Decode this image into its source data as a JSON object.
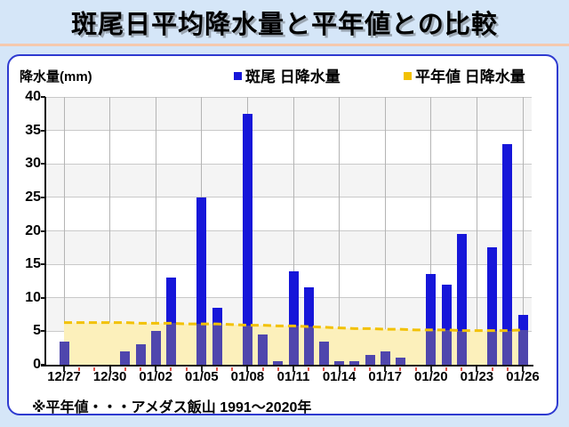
{
  "title": "斑尾日平均降水量と平年値との比較",
  "panel": {
    "y_axis_title": "降水量(mm)",
    "legend": [
      {
        "label": "斑尾 日降水量",
        "swatch": "blue-square-icon",
        "color": "#1616d9"
      },
      {
        "label": "平年値 日降水量",
        "swatch": "yellow-square-icon",
        "color": "#f2c104"
      }
    ],
    "footnote": "※平年値・・・アメダス飯山 1991〜2020年"
  },
  "chart_data": {
    "type": "bar",
    "title": "斑尾日平均降水量と平年値との比較",
    "xlabel": "",
    "ylabel": "降水量(mm)",
    "ylim": [
      0,
      40
    ],
    "ytick_step": 5,
    "grid": true,
    "legend_position": "top",
    "categories": [
      "12/27",
      "12/28",
      "12/29",
      "12/30",
      "12/31",
      "01/01",
      "01/02",
      "01/03",
      "01/04",
      "01/05",
      "01/06",
      "01/07",
      "01/08",
      "01/09",
      "01/10",
      "01/11",
      "01/12",
      "01/13",
      "01/14",
      "01/15",
      "01/16",
      "01/17",
      "01/18",
      "01/19",
      "01/20",
      "01/21",
      "01/22",
      "01/23",
      "01/24",
      "01/25",
      "01/26"
    ],
    "x_tick_labels": [
      "12/27",
      "12/30",
      "01/02",
      "01/05",
      "01/08",
      "01/11",
      "01/14",
      "01/17",
      "01/20",
      "01/23",
      "01/26"
    ],
    "series": [
      {
        "name": "斑尾 日降水量",
        "type": "bar",
        "color": "#1616d9",
        "overlap_color": "#4f46ad",
        "values": [
          3.5,
          0,
          0,
          0,
          2,
          3,
          5,
          13,
          0,
          25,
          8.5,
          0,
          37.5,
          4.5,
          0.5,
          14,
          11.5,
          3.5,
          0.5,
          0.5,
          1.5,
          2,
          1,
          0,
          13.5,
          12,
          19.5,
          0,
          17.5,
          33,
          7.5
        ]
      },
      {
        "name": "平年値 日降水量",
        "type": "dashed-line-area",
        "color": "#f2c104",
        "fill_color": "#fcf0bb",
        "values": [
          6.3,
          6.3,
          6.3,
          6.3,
          6.3,
          6.2,
          6.2,
          6.2,
          6.1,
          6.1,
          6.1,
          6.0,
          5.9,
          5.9,
          5.8,
          5.8,
          5.7,
          5.6,
          5.5,
          5.4,
          5.4,
          5.3,
          5.3,
          5.2,
          5.2,
          5.2,
          5.1,
          5.1,
          5.1,
          5.1,
          5.2
        ]
      }
    ]
  },
  "colors": {
    "page_background": "#d5e6f8",
    "title_rule": "#f5c9ae",
    "panel_border": "#2e3ad0",
    "band_gray": "#f4f4f4",
    "grid_h": "#c9c9c9",
    "grid_v": "#b4b4b4",
    "minor_tick_red": "#e0544a"
  }
}
